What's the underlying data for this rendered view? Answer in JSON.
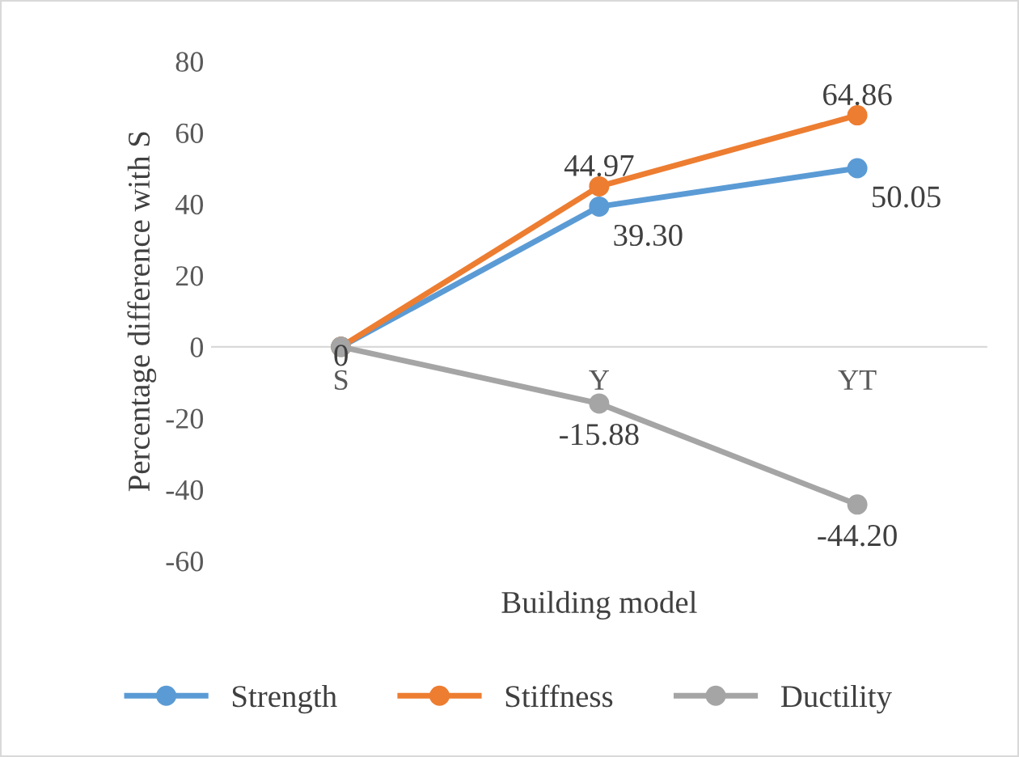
{
  "chart_data": {
    "type": "line",
    "xlabel": "Building model",
    "ylabel": "Percentage difference with S",
    "categories": [
      "S",
      "Y",
      "YT"
    ],
    "series": [
      {
        "name": "Strength",
        "color": "#5b9bd5",
        "values": [
          0,
          39.3,
          50.05
        ],
        "value_labels": [
          null,
          "39.30",
          "50.05"
        ]
      },
      {
        "name": "Stiffness",
        "color": "#ed7d31",
        "values": [
          0,
          44.97,
          64.86
        ],
        "value_labels": [
          null,
          "44.97",
          "64.86"
        ]
      },
      {
        "name": "Ductility",
        "color": "#a5a5a5",
        "values": [
          0,
          -15.88,
          -44.2
        ],
        "value_labels": [
          "0",
          "-15.88",
          "-44.20"
        ]
      }
    ],
    "ylim": [
      -60,
      80
    ],
    "yticks": [
      -60,
      -40,
      -20,
      0,
      20,
      40,
      60,
      80
    ],
    "grid": false,
    "legend": "bottom",
    "marker": "circle",
    "line_style": "solid"
  }
}
